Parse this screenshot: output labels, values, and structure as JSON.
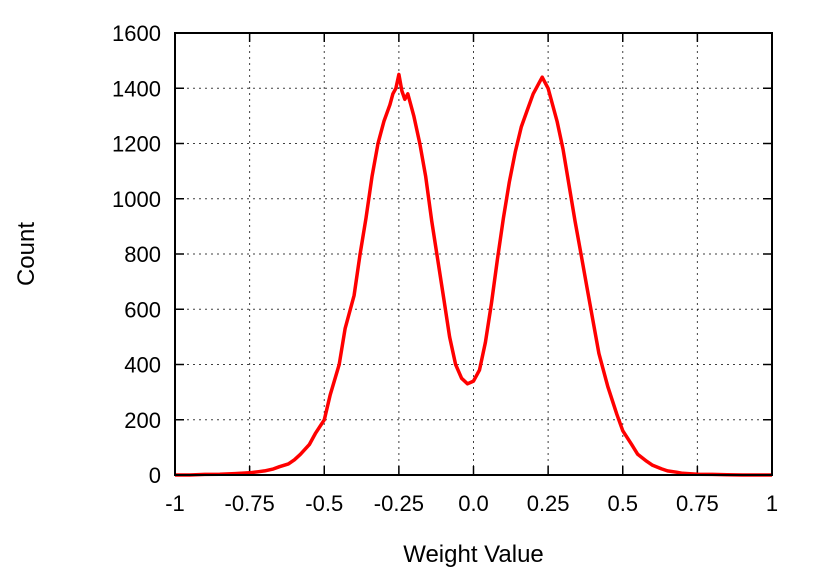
{
  "chart_data": {
    "type": "line",
    "title": "",
    "xlabel": "Weight Value",
    "ylabel": "Count",
    "xlim": [
      -1,
      1
    ],
    "ylim": [
      0,
      1600
    ],
    "grid": true,
    "legend": "none",
    "x_ticks": [
      {
        "value": -1,
        "label": "-1"
      },
      {
        "value": -0.75,
        "label": "-0.75"
      },
      {
        "value": -0.5,
        "label": "-0.5"
      },
      {
        "value": -0.25,
        "label": "-0.25"
      },
      {
        "value": 0,
        "label": "0.0"
      },
      {
        "value": 0.25,
        "label": "0.25"
      },
      {
        "value": 0.5,
        "label": "0.5"
      },
      {
        "value": 0.75,
        "label": "0.75"
      },
      {
        "value": 1,
        "label": "1"
      }
    ],
    "y_ticks": [
      {
        "value": 0,
        "label": "0"
      },
      {
        "value": 200,
        "label": "200"
      },
      {
        "value": 400,
        "label": "400"
      },
      {
        "value": 600,
        "label": "600"
      },
      {
        "value": 800,
        "label": "800"
      },
      {
        "value": 1000,
        "label": "1000"
      },
      {
        "value": 1200,
        "label": "1200"
      },
      {
        "value": 1400,
        "label": "1400"
      },
      {
        "value": 1600,
        "label": "1600"
      }
    ],
    "series": [
      {
        "color": "#ff0000",
        "x": [
          -1.0,
          -0.95,
          -0.9,
          -0.85,
          -0.8,
          -0.75,
          -0.72,
          -0.7,
          -0.67,
          -0.65,
          -0.62,
          -0.6,
          -0.58,
          -0.55,
          -0.53,
          -0.5,
          -0.48,
          -0.45,
          -0.43,
          -0.4,
          -0.38,
          -0.36,
          -0.34,
          -0.32,
          -0.3,
          -0.28,
          -0.27,
          -0.26,
          -0.25,
          -0.24,
          -0.23,
          -0.22,
          -0.21,
          -0.2,
          -0.18,
          -0.16,
          -0.14,
          -0.12,
          -0.1,
          -0.08,
          -0.06,
          -0.04,
          -0.02,
          0.0,
          0.02,
          0.04,
          0.06,
          0.08,
          0.1,
          0.12,
          0.14,
          0.16,
          0.18,
          0.2,
          0.21,
          0.22,
          0.23,
          0.24,
          0.25,
          0.26,
          0.28,
          0.3,
          0.32,
          0.34,
          0.36,
          0.38,
          0.4,
          0.42,
          0.45,
          0.48,
          0.5,
          0.53,
          0.55,
          0.58,
          0.6,
          0.63,
          0.65,
          0.68,
          0.7,
          0.75,
          0.8,
          0.85,
          0.9,
          0.95,
          1.0
        ],
        "y": [
          0,
          0,
          2,
          3,
          5,
          8,
          12,
          15,
          22,
          30,
          40,
          55,
          75,
          110,
          150,
          200,
          290,
          400,
          530,
          650,
          800,
          930,
          1080,
          1200,
          1280,
          1340,
          1380,
          1400,
          1450,
          1390,
          1360,
          1380,
          1340,
          1300,
          1200,
          1080,
          920,
          780,
          640,
          500,
          400,
          350,
          330,
          340,
          380,
          480,
          620,
          780,
          930,
          1060,
          1170,
          1260,
          1320,
          1380,
          1400,
          1420,
          1440,
          1420,
          1400,
          1360,
          1280,
          1180,
          1050,
          920,
          800,
          680,
          560,
          440,
          320,
          220,
          160,
          110,
          75,
          50,
          35,
          22,
          15,
          10,
          6,
          3,
          2,
          1,
          0,
          0,
          0
        ]
      }
    ]
  }
}
